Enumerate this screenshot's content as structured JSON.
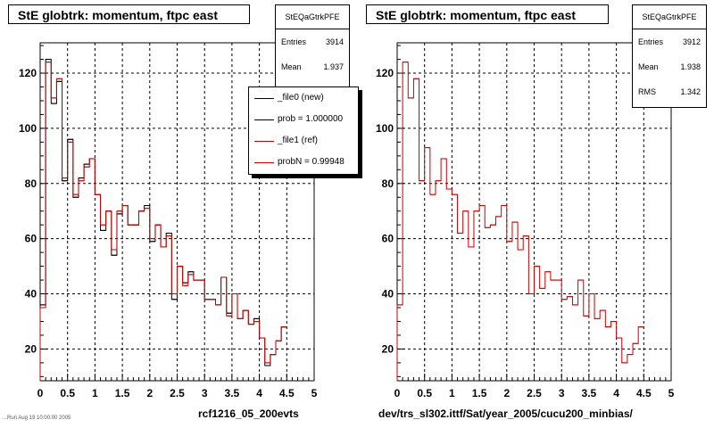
{
  "colors": {
    "new": "#000000",
    "ref": "#cc0000"
  },
  "left_panel": {
    "title": "StE globtrk: momentum, ftpc east",
    "stats": {
      "name": "StEQaGtrkPFE",
      "rows": [
        {
          "label": "Entries",
          "value": "3914"
        },
        {
          "label": "Mean",
          "value": "1.937"
        }
      ]
    },
    "legend": [
      {
        "label": "_file0 (new)",
        "color": "#000000"
      },
      {
        "label": "prob = 1.000000",
        "color": "#000000"
      },
      {
        "label": "_file1 (ref)",
        "color": "#cc0000"
      },
      {
        "label": "probN = 0.99948",
        "color": "#cc0000"
      }
    ],
    "caption": "rcf1216_05_200evts",
    "footnote": "...Run Aug 19 10:00:00 2005"
  },
  "right_panel": {
    "title": "StE globtrk: momentum, ftpc east",
    "stats": {
      "name": "StEQaGtrkPFE",
      "rows": [
        {
          "label": "Entries",
          "value": "3912"
        },
        {
          "label": "Mean",
          "value": "1.938"
        },
        {
          "label": "RMS",
          "value": "1.342"
        }
      ]
    },
    "caption": "dev/trs_sl302.ittf/Sat/year_2005/cucu200_minbias/"
  },
  "chart_data": [
    {
      "type": "histogram",
      "title": "StE globtrk: momentum, ftpc east",
      "xlim": [
        0,
        5
      ],
      "ylim": [
        8.5,
        131
      ],
      "xticks": [
        0,
        0.5,
        1,
        1.5,
        2,
        2.5,
        3,
        3.5,
        4,
        4.5,
        5
      ],
      "yticks": [
        20,
        40,
        60,
        80,
        100,
        120
      ],
      "grid": true,
      "bin_width": 0.1,
      "series": [
        {
          "name": "_file0 (new)",
          "color": "#000000",
          "values": [
            36,
            125,
            109,
            117,
            81,
            96,
            75,
            82,
            87,
            89,
            76,
            63,
            70,
            54,
            69,
            72,
            65,
            65,
            70,
            72,
            59,
            65,
            57,
            62,
            38,
            50,
            44,
            48,
            45,
            45,
            38,
            38,
            36,
            46,
            33,
            40,
            31,
            34,
            29,
            31,
            24,
            14,
            18,
            23,
            28
          ]
        },
        {
          "name": "_file1 (ref)",
          "color": "#cc0000",
          "values": [
            35,
            124,
            111,
            118,
            82,
            95,
            76,
            81,
            86,
            89,
            76,
            65,
            70,
            56,
            70,
            72,
            65,
            65,
            70,
            71,
            60,
            65,
            57,
            61,
            40,
            50,
            43,
            47,
            45,
            45,
            38,
            38,
            36,
            46,
            32,
            40,
            31,
            34,
            29,
            30,
            24,
            15,
            18,
            23,
            28
          ]
        }
      ]
    },
    {
      "type": "histogram",
      "title": "StE globtrk: momentum, ftpc east",
      "xlim": [
        0,
        5
      ],
      "ylim": [
        8.5,
        131
      ],
      "xticks": [
        0,
        0.5,
        1,
        1.5,
        2,
        2.5,
        3,
        3.5,
        4,
        4.5,
        5
      ],
      "yticks": [
        20,
        40,
        60,
        80,
        100,
        120
      ],
      "grid": true,
      "bin_width": 0.1,
      "series": [
        {
          "name": "_file1 (ref)",
          "color": "#cc0000",
          "values": [
            36,
            124,
            111,
            118,
            81,
            93,
            76,
            81,
            89,
            78,
            76,
            62,
            70,
            57,
            70,
            72,
            64,
            65,
            68,
            72,
            59,
            66,
            56,
            61,
            40,
            50,
            42,
            48,
            45,
            45,
            38,
            39,
            36,
            45,
            32,
            40,
            31,
            34,
            28,
            30,
            24,
            15,
            18,
            22,
            28
          ]
        }
      ]
    }
  ]
}
